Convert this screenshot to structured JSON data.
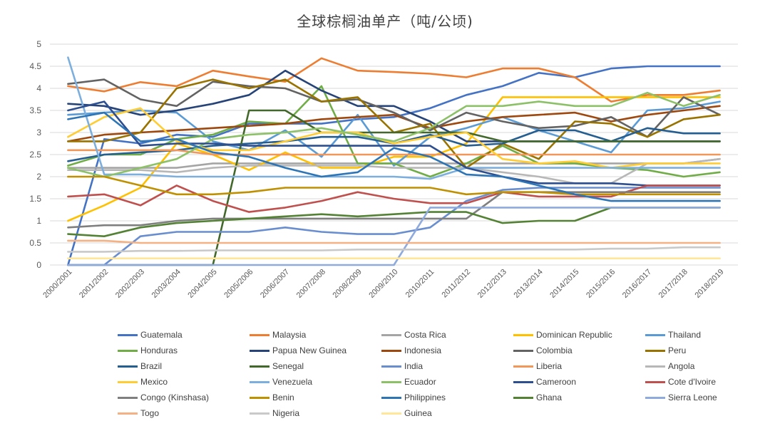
{
  "chart_data": {
    "type": "line",
    "title": "全球棕榈油单产（吨/公顷)",
    "xlabel": "",
    "ylabel": "",
    "ylim": [
      0,
      5
    ],
    "yticks": [
      "0",
      "0.5",
      "1",
      "1.5",
      "2",
      "2.5",
      "3",
      "3.5",
      "4",
      "4.5",
      "5"
    ],
    "grid": true,
    "legend_position": "bottom",
    "categories": [
      "2000/2001",
      "2001/2002",
      "2002/2003",
      "2003/2004",
      "2004/2005",
      "2005/2006",
      "2006/2007",
      "2007/2008",
      "2008/2009",
      "2009/2010",
      "2010/2011",
      "2011/2012",
      "2012/2013",
      "2013/2014",
      "2014/2015",
      "2015/2016",
      "2016/2017",
      "2017/2018",
      "2018/2019"
    ],
    "series": [
      {
        "name": "Guatemala",
        "color": "#4472C4",
        "values": [
          0,
          2.85,
          2.75,
          2.95,
          2.9,
          3.2,
          3.2,
          3.2,
          3.3,
          3.35,
          3.55,
          3.85,
          4.05,
          4.35,
          4.25,
          4.45,
          4.5,
          4.5,
          4.5
        ]
      },
      {
        "name": "Malaysia",
        "color": "#ED7D31",
        "values": [
          4.05,
          3.93,
          4.14,
          4.05,
          4.4,
          4.27,
          4.15,
          4.68,
          4.4,
          4.37,
          4.33,
          4.25,
          4.45,
          4.45,
          4.25,
          3.7,
          3.85,
          3.85,
          3.95
        ]
      },
      {
        "name": "Costa Rica",
        "color": "#A5A5A5",
        "values": [
          2.2,
          2.2,
          2.2,
          2.2,
          2.3,
          2.3,
          2.3,
          2.3,
          2.3,
          2.3,
          2.3,
          2.3,
          2.3,
          2.3,
          2.3,
          2.3,
          2.3,
          2.3,
          2.4
        ]
      },
      {
        "name": "Dominican Republic",
        "color": "#FFC000",
        "values": [
          1.0,
          1.35,
          1.75,
          2.75,
          2.5,
          2.15,
          2.55,
          2.2,
          2.2,
          2.45,
          2.45,
          2.75,
          3.8,
          3.8,
          3.8,
          3.8,
          3.8,
          3.8,
          3.8
        ]
      },
      {
        "name": "Thailand",
        "color": "#5B9BD5",
        "values": [
          3.4,
          3.45,
          3.5,
          3.45,
          2.8,
          2.6,
          3.05,
          2.45,
          3.4,
          2.25,
          2.9,
          3.1,
          3.35,
          3.05,
          2.8,
          2.55,
          3.5,
          3.55,
          3.7
        ]
      },
      {
        "name": "Honduras",
        "color": "#70AD47",
        "values": [
          2.25,
          2.5,
          2.5,
          2.85,
          2.95,
          3.25,
          3.2,
          4.05,
          2.3,
          2.3,
          2.0,
          2.3,
          2.7,
          2.3,
          2.3,
          2.2,
          2.15,
          2.0,
          2.1
        ]
      },
      {
        "name": "Papua New Guinea",
        "color": "#264478",
        "values": [
          3.65,
          3.6,
          3.4,
          3.5,
          3.65,
          3.85,
          4.4,
          3.95,
          3.6,
          3.6,
          3.25,
          2.8,
          2.8,
          2.8,
          2.8,
          2.8,
          2.8,
          2.8,
          2.8
        ]
      },
      {
        "name": "Indonesia",
        "color": "#9E480E",
        "values": [
          2.8,
          2.95,
          3.0,
          3.05,
          3.1,
          3.15,
          3.2,
          3.3,
          3.35,
          3.4,
          3.1,
          3.25,
          3.35,
          3.4,
          3.45,
          3.25,
          3.4,
          3.5,
          3.6
        ]
      },
      {
        "name": "Colombia",
        "color": "#636363",
        "values": [
          4.1,
          4.2,
          3.75,
          3.6,
          4.15,
          4.05,
          4.0,
          3.7,
          3.75,
          3.45,
          3.05,
          3.45,
          3.25,
          3.1,
          3.15,
          3.35,
          2.9,
          3.8,
          3.4
        ]
      },
      {
        "name": "Peru",
        "color": "#997300",
        "values": [
          2.8,
          2.8,
          3.0,
          4.0,
          4.2,
          4.0,
          4.2,
          3.7,
          3.8,
          3.0,
          3.2,
          2.2,
          2.75,
          2.4,
          3.25,
          3.2,
          2.9,
          3.3,
          3.4
        ]
      },
      {
        "name": "Brazil",
        "color": "#255E91",
        "values": [
          2.35,
          2.5,
          2.55,
          2.6,
          2.7,
          2.75,
          2.8,
          2.9,
          2.9,
          2.75,
          2.95,
          2.7,
          2.75,
          3.05,
          3.05,
          2.8,
          3.1,
          2.98,
          2.98
        ]
      },
      {
        "name": "Senegal",
        "color": "#43682B",
        "values": [
          0,
          0,
          0,
          0,
          0,
          3.5,
          3.5,
          3.0,
          3.0,
          3.0,
          3.0,
          3.0,
          2.8,
          2.8,
          2.8,
          2.8,
          2.8,
          2.8,
          2.8
        ]
      },
      {
        "name": "India",
        "color": "#698ED0",
        "values": [
          0,
          0,
          0.65,
          0.75,
          0.75,
          0.75,
          0.85,
          0.75,
          0.7,
          0.7,
          0.85,
          1.45,
          1.7,
          1.75,
          1.75,
          1.75,
          1.75,
          1.75,
          1.75
        ]
      },
      {
        "name": "Liberia",
        "color": "#F1975A",
        "values": [
          2.6,
          2.6,
          2.6,
          2.6,
          2.5,
          2.5,
          2.5,
          2.5,
          2.5,
          2.5,
          2.5,
          2.5,
          2.5,
          2.5,
          2.5,
          2.5,
          2.5,
          2.5,
          2.5
        ]
      },
      {
        "name": "Angola",
        "color": "#B7B7B7",
        "values": [
          2.15,
          2.15,
          2.15,
          2.1,
          2.2,
          2.25,
          2.25,
          2.25,
          2.25,
          2.2,
          2.2,
          2.2,
          2.1,
          2.0,
          1.85,
          1.85,
          2.3,
          2.3,
          2.4
        ]
      },
      {
        "name": "Mexico",
        "color": "#FFCD33",
        "values": [
          2.9,
          3.35,
          3.55,
          2.8,
          2.6,
          2.6,
          2.8,
          3.0,
          3.0,
          2.75,
          2.9,
          3.0,
          2.4,
          2.3,
          2.35,
          2.2,
          2.3,
          2.3,
          2.3
        ]
      },
      {
        "name": "Venezuela",
        "color": "#7CAFDD",
        "values": [
          4.7,
          2.05,
          2.05,
          2.0,
          2.0,
          2.0,
          2.0,
          2.0,
          2.0,
          2.0,
          1.95,
          2.2,
          2.2,
          2.2,
          2.2,
          2.2,
          2.2,
          2.2,
          2.2
        ]
      },
      {
        "name": "Ecuador",
        "color": "#8CC168",
        "values": [
          2.2,
          2.0,
          2.2,
          2.4,
          2.85,
          2.95,
          3.0,
          3.1,
          2.95,
          2.8,
          3.1,
          3.6,
          3.6,
          3.7,
          3.6,
          3.6,
          3.9,
          3.6,
          3.85
        ]
      },
      {
        "name": "Cameroon",
        "color": "#2E4F8F",
        "values": [
          3.5,
          3.7,
          2.7,
          2.75,
          2.75,
          2.7,
          2.7,
          2.7,
          2.7,
          2.7,
          2.7,
          2.2,
          2.0,
          1.85,
          1.85,
          1.85,
          1.8,
          1.8,
          1.8
        ]
      },
      {
        "name": "Cote d'Ivoire",
        "color": "#C0504D",
        "values": [
          1.55,
          1.6,
          1.35,
          1.8,
          1.45,
          1.2,
          1.3,
          1.45,
          1.65,
          1.5,
          1.4,
          1.4,
          1.65,
          1.55,
          1.55,
          1.55,
          1.8,
          1.8,
          1.8
        ]
      },
      {
        "name": "Congo (Kinshasa)",
        "color": "#7F7F7F",
        "values": [
          0.85,
          0.9,
          0.9,
          1.0,
          1.05,
          1.05,
          1.05,
          1.05,
          1.05,
          1.05,
          1.05,
          1.05,
          1.65,
          1.65,
          1.65,
          1.65,
          1.65,
          1.65,
          1.65
        ]
      },
      {
        "name": "Benin",
        "color": "#BF9000",
        "values": [
          2.0,
          2.0,
          1.8,
          1.6,
          1.6,
          1.65,
          1.75,
          1.75,
          1.75,
          1.75,
          1.75,
          1.6,
          1.65,
          1.65,
          1.6,
          1.6,
          1.6,
          1.6,
          1.6
        ]
      },
      {
        "name": "Philippines",
        "color": "#2E75B6",
        "values": [
          3.3,
          3.45,
          2.8,
          2.85,
          2.55,
          2.45,
          2.2,
          2.0,
          2.1,
          2.65,
          2.45,
          2.05,
          2.0,
          1.8,
          1.6,
          1.45,
          1.45,
          1.45,
          1.45
        ]
      },
      {
        "name": "Ghana",
        "color": "#548235",
        "values": [
          0.7,
          0.65,
          0.85,
          0.95,
          1.0,
          1.05,
          1.1,
          1.15,
          1.1,
          1.15,
          1.2,
          1.2,
          0.95,
          1.0,
          1.0,
          1.3,
          1.3,
          1.3,
          1.3
        ]
      },
      {
        "name": "Sierra Leone",
        "color": "#8FAADC",
        "values": [
          0,
          0,
          0,
          0,
          0,
          0,
          0,
          0,
          0,
          0,
          1.3,
          1.3,
          1.3,
          1.3,
          1.3,
          1.3,
          1.3,
          1.3,
          1.3
        ]
      },
      {
        "name": "Togo",
        "color": "#F4B183",
        "values": [
          0.55,
          0.55,
          0.5,
          0.5,
          0.5,
          0.5,
          0.5,
          0.5,
          0.5,
          0.5,
          0.5,
          0.5,
          0.5,
          0.5,
          0.5,
          0.5,
          0.5,
          0.5,
          0.5
        ]
      },
      {
        "name": "Nigeria",
        "color": "#C9C9C9",
        "values": [
          0.3,
          0.3,
          0.32,
          0.32,
          0.33,
          0.33,
          0.33,
          0.33,
          0.35,
          0.35,
          0.35,
          0.35,
          0.35,
          0.35,
          0.35,
          0.37,
          0.37,
          0.4,
          0.4
        ]
      },
      {
        "name": "Guinea",
        "color": "#FFE699",
        "values": [
          0.15,
          0.15,
          0.15,
          0.15,
          0.15,
          0.15,
          0.15,
          0.15,
          0.15,
          0.15,
          0.15,
          0.15,
          0.15,
          0.15,
          0.15,
          0.15,
          0.15,
          0.15,
          0.15
        ]
      }
    ]
  }
}
